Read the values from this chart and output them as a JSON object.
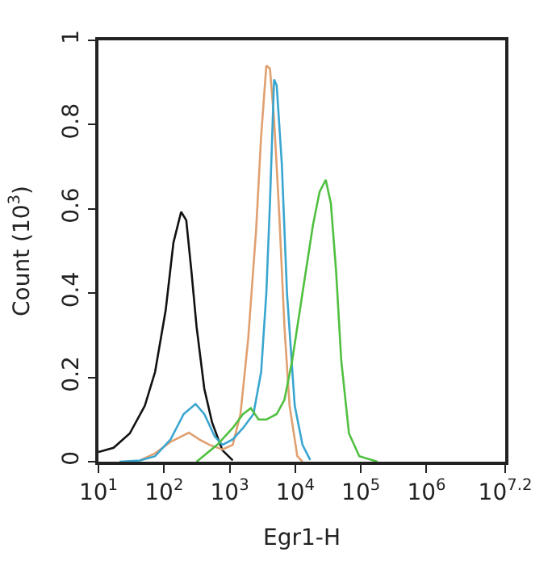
{
  "chart_data": {
    "type": "line",
    "xlabel": "Egr1-H",
    "ylabel": "Count (10$^{3}$)",
    "log": "x",
    "marker": "none",
    "line_style": "solid",
    "xlim": [
      10,
      15848932
    ],
    "ylim": [
      0,
      1
    ],
    "xticks": [
      {
        "value": 10,
        "label": "10$^{1}$"
      },
      {
        "value": 100,
        "label": "10$^{2}$"
      },
      {
        "value": 1000,
        "label": "10$^{3}$"
      },
      {
        "value": 10000,
        "label": "10$^{4}$"
      },
      {
        "value": 100000,
        "label": "10$^{5}$"
      },
      {
        "value": 1000000,
        "label": "10$^{6}$"
      },
      {
        "value": 15848932,
        "label": "10$^{7.2}$"
      }
    ],
    "yticks": [
      0,
      0.2,
      0.4,
      0.6,
      0.8,
      1
    ],
    "series": [
      {
        "color": "#111111",
        "x": [
          10,
          17,
          30,
          51,
          73,
          106,
          139,
          182,
          218,
          261,
          313,
          411,
          540,
          776,
          1114
        ],
        "values": [
          0.023,
          0.033,
          0.067,
          0.133,
          0.213,
          0.36,
          0.52,
          0.593,
          0.573,
          0.453,
          0.32,
          0.173,
          0.093,
          0.027,
          0.003
        ]
      },
      {
        "color": "#e0a070",
        "x": [
          43,
          73,
          126,
          239,
          343,
          493,
          776,
          1114,
          1462,
          1919,
          2523,
          3020,
          3622,
          4111,
          4753,
          5702,
          6839,
          8185,
          10740,
          12880
        ],
        "values": [
          0.003,
          0.02,
          0.047,
          0.069,
          0.053,
          0.04,
          0.029,
          0.04,
          0.113,
          0.293,
          0.547,
          0.773,
          0.94,
          0.933,
          0.813,
          0.587,
          0.32,
          0.133,
          0.013,
          0
        ]
      },
      {
        "color": "#3aa6d0",
        "x": [
          21,
          43,
          73,
          126,
          199,
          302,
          411,
          592,
          776,
          1114,
          1603,
          2303,
          3020,
          3622,
          4111,
          4753,
          5212,
          6237,
          7482,
          9817,
          12880,
          16900
        ],
        "values": [
          0,
          0.003,
          0.013,
          0.053,
          0.113,
          0.137,
          0.113,
          0.06,
          0.04,
          0.053,
          0.08,
          0.113,
          0.213,
          0.4,
          0.613,
          0.907,
          0.893,
          0.707,
          0.4,
          0.133,
          0.04,
          0.004
        ]
      },
      {
        "color": "#50c040",
        "x": [
          313,
          647,
          1114,
          1603,
          2104,
          2761,
          3622,
          5212,
          6839,
          8974,
          12880,
          18530,
          23440,
          29170,
          34910,
          41880,
          50230,
          65920,
          94620,
          178600
        ],
        "values": [
          0,
          0.04,
          0.08,
          0.113,
          0.127,
          0.1,
          0.1,
          0.113,
          0.147,
          0.24,
          0.4,
          0.56,
          0.64,
          0.669,
          0.613,
          0.453,
          0.24,
          0.067,
          0.013,
          0
        ]
      }
    ]
  }
}
